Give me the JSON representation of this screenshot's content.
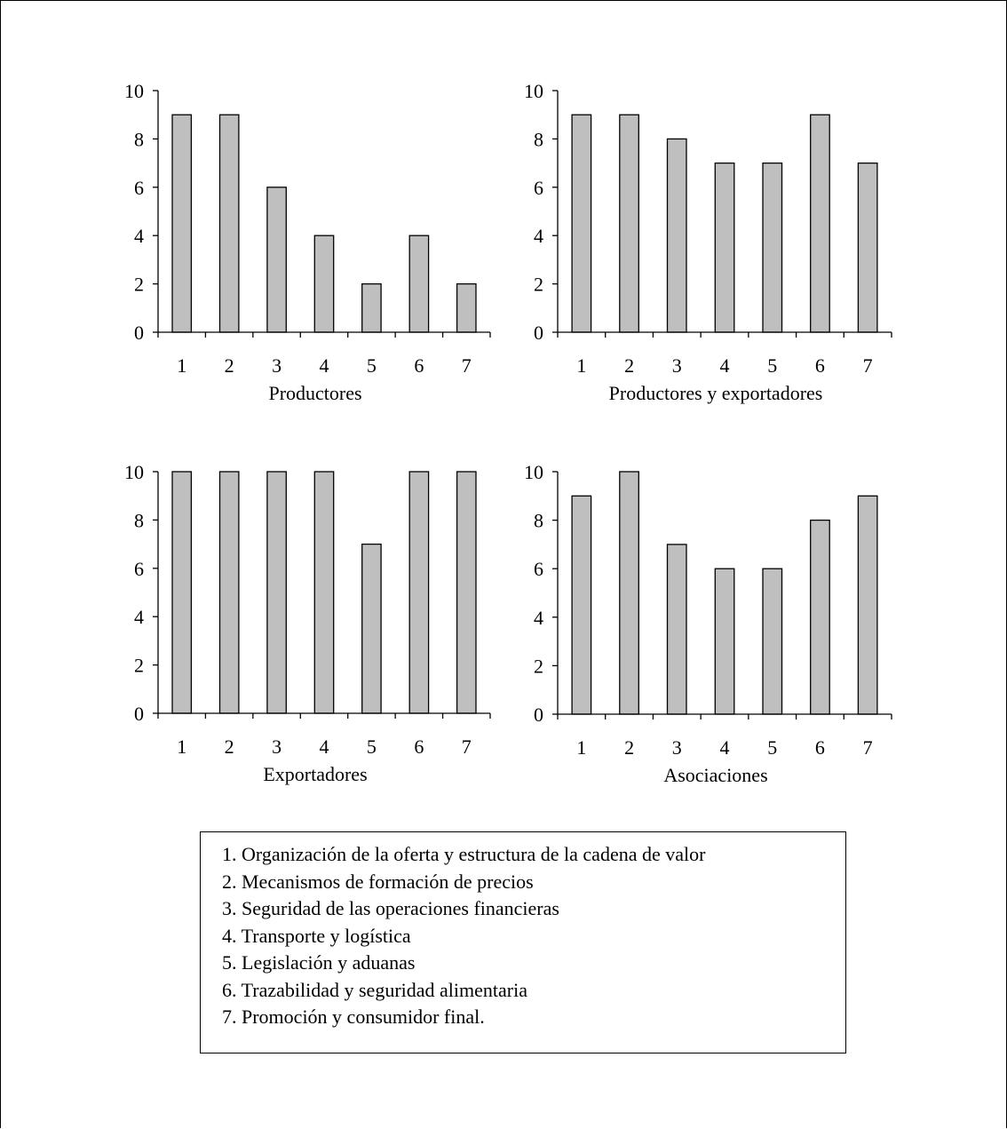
{
  "chart_data": [
    {
      "type": "bar",
      "xlabel": "Productores",
      "categories": [
        "1",
        "2",
        "3",
        "4",
        "5",
        "6",
        "7"
      ],
      "values": [
        9,
        9,
        6,
        4,
        2,
        4,
        2
      ],
      "ylim": [
        0,
        10
      ],
      "yticks": [
        "0",
        "2",
        "4",
        "6",
        "8",
        "10"
      ],
      "grid": false,
      "bar_color": "#bfbfbf"
    },
    {
      "type": "bar",
      "xlabel": "Productores y exportadores",
      "categories": [
        "1",
        "2",
        "3",
        "4",
        "5",
        "6",
        "7"
      ],
      "values": [
        9,
        9,
        8,
        7,
        7,
        9,
        7
      ],
      "ylim": [
        0,
        10
      ],
      "yticks": [
        "0",
        "2",
        "4",
        "6",
        "8",
        "10"
      ],
      "grid": false,
      "bar_color": "#bfbfbf"
    },
    {
      "type": "bar",
      "xlabel": "Exportadores",
      "categories": [
        "1",
        "2",
        "3",
        "4",
        "5",
        "6",
        "7"
      ],
      "values": [
        10,
        10,
        10,
        10,
        7,
        10,
        10
      ],
      "ylim": [
        0,
        10
      ],
      "yticks": [
        "0",
        "2",
        "4",
        "6",
        "8",
        "10"
      ],
      "grid": false,
      "bar_color": "#bfbfbf"
    },
    {
      "type": "bar",
      "xlabel": "Asociaciones",
      "categories": [
        "1",
        "2",
        "3",
        "4",
        "5",
        "6",
        "7"
      ],
      "values": [
        9,
        10,
        7,
        6,
        6,
        8,
        9
      ],
      "ylim": [
        0,
        10
      ],
      "yticks": [
        "0",
        "2",
        "4",
        "6",
        "8",
        "10"
      ],
      "grid": false,
      "bar_color": "#bfbfbf"
    }
  ],
  "legend": {
    "items": [
      "1. Organización de la oferta y estructura de la cadena de valor",
      "2. Mecanismos de formación de precios",
      "3. Seguridad de las operaciones financieras",
      "4. Transporte y logística",
      "5. Legislación y aduanas",
      "6. Trazabilidad y seguridad alimentaria",
      "7. Promoción y consumidor final."
    ]
  }
}
